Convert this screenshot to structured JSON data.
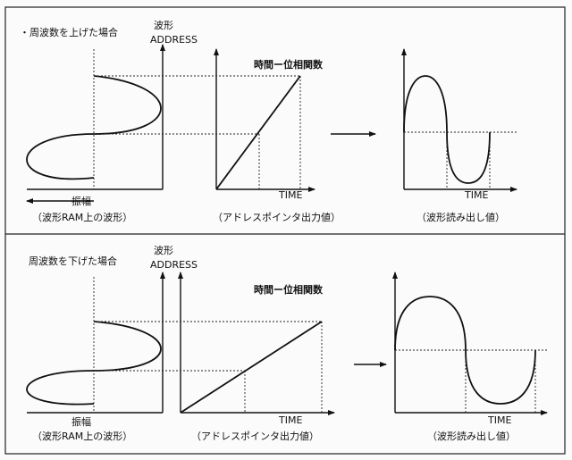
{
  "panels": [
    {
      "heading": "・周波数を上げた場合",
      "waveform_axis_label_1": "波形",
      "waveform_axis_label_2": "ADDRESS",
      "amplitude_label": "振幅",
      "waveform_caption": "（波形RAM上の波形）",
      "pointer_title": "時間ー位相関数",
      "pointer_time_label": "TIME",
      "pointer_caption": "（アドレスポインタ出力値）",
      "output_time_label": "TIME",
      "output_caption": "（波形読み出し値）"
    },
    {
      "heading": "周波数を下げた場合",
      "waveform_axis_label_1": "波形",
      "waveform_axis_label_2": "ADDRESS",
      "amplitude_label": "振幅",
      "waveform_caption": "（波形RAM上の波形）",
      "pointer_title": "時間ー位相関数",
      "pointer_time_label": "TIME",
      "pointer_caption": "（アドレスポインタ出力値）",
      "output_time_label": "TIME",
      "output_caption": "（波形読み出し値）"
    }
  ]
}
